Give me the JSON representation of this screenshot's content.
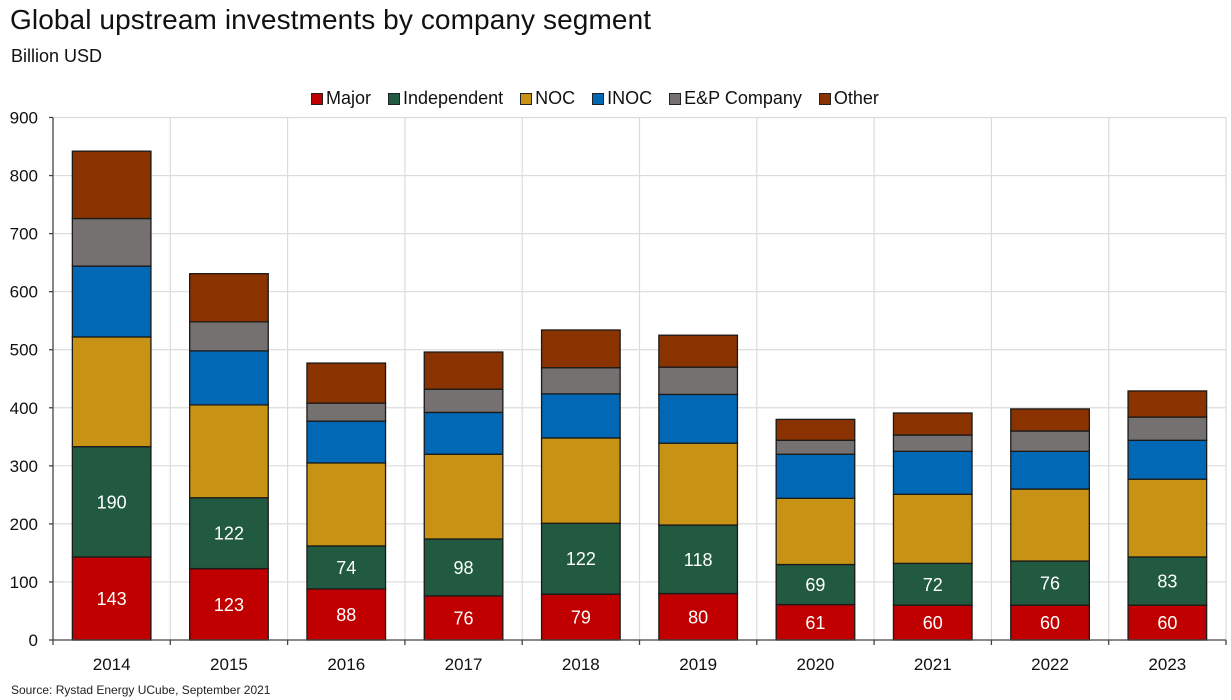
{
  "header": {
    "title": "Global upstream investments by company segment",
    "subtitle": "Billion USD"
  },
  "footer": {
    "source": "Source: Rystad Energy UCube, September 2021"
  },
  "legend": [
    {
      "name": "Major",
      "color": "#C00000"
    },
    {
      "name": "Independent",
      "color": "#215A40"
    },
    {
      "name": "NOC",
      "color": "#C89215"
    },
    {
      "name": "INOC",
      "color": "#0068B5"
    },
    {
      "name": "E&P Company",
      "color": "#767171"
    },
    {
      "name": "Other",
      "color": "#8B3300"
    }
  ],
  "chart_data": {
    "type": "bar",
    "stacked": true,
    "title": "Global upstream investments by company segment",
    "subtitle": "Billion USD",
    "xlabel": "",
    "ylabel": "Billion USD",
    "ylim": [
      0,
      900
    ],
    "yticks": [
      0,
      100,
      200,
      300,
      400,
      500,
      600,
      700,
      800,
      900
    ],
    "grid": true,
    "legend_position": "top-center",
    "categories": [
      "2014",
      "2015",
      "2016",
      "2017",
      "2018",
      "2019",
      "2020",
      "2021",
      "2022",
      "2023"
    ],
    "series": [
      {
        "name": "Major",
        "color": "#C00000",
        "labeled": true,
        "values": [
          143,
          123,
          88,
          76,
          79,
          80,
          61,
          60,
          60,
          60
        ]
      },
      {
        "name": "Independent",
        "color": "#215A40",
        "labeled": true,
        "values": [
          190,
          122,
          74,
          98,
          122,
          118,
          69,
          72,
          76,
          83
        ]
      },
      {
        "name": "NOC",
        "color": "#C89215",
        "labeled": false,
        "values": [
          189,
          160,
          143,
          146,
          147,
          141,
          114,
          119,
          124,
          134
        ]
      },
      {
        "name": "INOC",
        "color": "#0068B5",
        "labeled": false,
        "values": [
          122,
          93,
          72,
          72,
          76,
          84,
          76,
          74,
          65,
          67
        ]
      },
      {
        "name": "E&P Company",
        "color": "#767171",
        "labeled": false,
        "values": [
          82,
          50,
          31,
          40,
          45,
          47,
          24,
          28,
          35,
          40
        ]
      },
      {
        "name": "Other",
        "color": "#8B3300",
        "labeled": false,
        "values": [
          116,
          83,
          69,
          64,
          65,
          55,
          36,
          38,
          38,
          45
        ]
      }
    ]
  }
}
